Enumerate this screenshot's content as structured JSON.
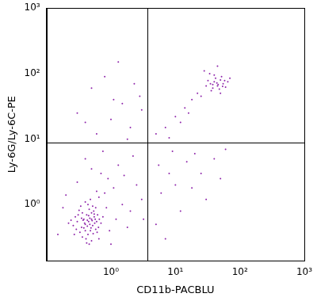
{
  "chart_data": {
    "type": "scatter",
    "x_label": "CD11b-PACBLU",
    "y_label": "Ly-6G/Ly-6C-PE",
    "color": "#8e24aa",
    "log": true,
    "grid": false,
    "xlim": [
      0.1,
      1000
    ],
    "ylim": [
      0.14,
      1000
    ],
    "xticks": [
      {
        "value": 1,
        "label": "10⁰"
      },
      {
        "value": 10,
        "label": "10¹"
      },
      {
        "value": 100,
        "label": "10²"
      },
      {
        "value": 1000,
        "label": "10³"
      }
    ],
    "yticks": [
      {
        "value": 1,
        "label": "10⁰"
      },
      {
        "value": 10,
        "label": "10¹"
      },
      {
        "value": 100,
        "label": "10²"
      },
      {
        "value": 1000,
        "label": "10³"
      }
    ],
    "gate_x": 3.7,
    "gate_y": 8.9,
    "x": [
      0.45,
      0.4,
      0.5,
      0.35,
      0.55,
      0.42,
      0.48,
      0.38,
      0.52,
      0.44,
      0.3,
      0.6,
      0.36,
      0.58,
      0.46,
      0.33,
      0.62,
      0.41,
      0.54,
      0.28,
      0.47,
      0.43,
      0.39,
      0.51,
      0.49,
      0.37,
      0.56,
      0.45,
      0.4,
      0.53,
      0.26,
      0.66,
      0.32,
      0.64,
      0.44,
      0.36,
      0.58,
      0.5,
      0.42,
      0.7,
      0.24,
      0.29,
      0.34,
      0.61,
      0.47,
      0.43,
      0.38,
      0.55,
      0.31,
      0.57,
      0.46,
      0.35,
      0.52,
      0.4,
      0.48,
      0.22,
      0.75,
      0.65,
      0.27,
      0.5,
      0.8,
      1.2,
      0.9,
      1.5,
      0.7,
      2.0,
      1.1,
      0.6,
      2.5,
      1.8,
      0.18,
      0.15,
      0.2,
      0.3,
      0.5,
      0.85,
      1.3,
      3.0,
      0.95,
      0.65,
      1.6,
      0.4,
      2.2,
      0.75,
      3.2,
      1.0,
      5,
      6,
      8,
      10,
      15,
      20,
      12,
      7,
      25,
      30,
      40,
      9,
      18,
      50,
      5.5,
      60,
      0.6,
      1.0,
      1.5,
      0.5,
      1.3,
      2.0,
      0.3,
      2.8,
      0.8,
      1.8,
      0.4,
      3.0,
      2.3,
      1.1,
      5,
      7,
      10,
      14,
      18,
      12,
      22,
      8,
      16,
      25,
      35,
      40,
      45,
      50,
      38,
      55,
      42,
      48,
      32,
      60,
      44,
      52,
      36,
      46,
      58,
      40,
      65,
      30,
      50,
      70,
      28,
      45,
      34,
      38,
      54
    ],
    "values": [
      0.55,
      0.5,
      0.6,
      0.45,
      0.65,
      0.7,
      0.4,
      0.6,
      0.48,
      0.35,
      0.55,
      0.55,
      0.75,
      0.42,
      0.85,
      0.38,
      0.7,
      0.3,
      0.8,
      0.65,
      0.62,
      0.47,
      0.52,
      0.57,
      0.44,
      0.58,
      0.52,
      0.68,
      0.4,
      0.36,
      0.48,
      0.6,
      0.82,
      0.45,
      1.0,
      0.32,
      0.9,
      0.28,
      0.26,
      0.52,
      0.58,
      0.42,
      0.95,
      0.38,
      0.5,
      0.58,
      0.44,
      0.72,
      0.7,
      0.6,
      0.25,
      0.62,
      0.95,
      1.1,
      1.2,
      0.52,
      0.65,
      0.3,
      0.35,
      0.75,
      1.5,
      0.6,
      2.5,
      1.0,
      3.0,
      0.8,
      1.8,
      1.6,
      2.0,
      0.45,
      0.9,
      0.35,
      1.4,
      2.2,
      3.5,
      0.9,
      4.0,
      1.2,
      0.4,
      1.3,
      2.8,
      5.0,
      5.5,
      6.5,
      0.6,
      0.25,
      0.5,
      1.5,
      3,
      2,
      4.5,
      6,
      0.8,
      0.3,
      3,
      1.2,
      5,
      6.5,
      1.8,
      2.5,
      4,
      7,
      12,
      20,
      35,
      60,
      150,
      15,
      25,
      45,
      90,
      10,
      18,
      28,
      70,
      40,
      12,
      15,
      22,
      30,
      40,
      18,
      50,
      10.5,
      25,
      45,
      70,
      75,
      65,
      80,
      60,
      70,
      85,
      58,
      78,
      62,
      72,
      90,
      55,
      68,
      78,
      95,
      75,
      65,
      50,
      85,
      110,
      130,
      100,
      68,
      64
    ]
  }
}
